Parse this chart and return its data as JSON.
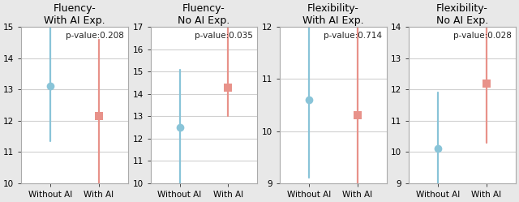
{
  "panels": [
    {
      "title": "Fluency-\nWith AI Exp.",
      "pvalue": "p-value:0.208",
      "ylim": [
        10,
        15
      ],
      "yticks": [
        10,
        11,
        12,
        13,
        14,
        15
      ],
      "without_ai": {
        "mean": 13.1,
        "ci_low": 11.35,
        "ci_high": 15.0
      },
      "with_ai": {
        "mean": 12.15,
        "ci_low": 9.85,
        "ci_high": 14.6
      }
    },
    {
      "title": "Fluency-\nNo AI Exp.",
      "pvalue": "p-value:0.035",
      "ylim": [
        10,
        17
      ],
      "yticks": [
        10,
        11,
        12,
        13,
        14,
        15,
        16,
        17
      ],
      "without_ai": {
        "mean": 12.5,
        "ci_low": 9.9,
        "ci_high": 15.1
      },
      "with_ai": {
        "mean": 14.3,
        "ci_low": 13.0,
        "ci_high": 17.0
      }
    },
    {
      "title": "Flexibility-\nWith AI Exp.",
      "pvalue": "p-value:0.714",
      "ylim": [
        9,
        12
      ],
      "yticks": [
        9,
        10,
        11,
        12
      ],
      "without_ai": {
        "mean": 10.6,
        "ci_low": 9.1,
        "ci_high": 12.3
      },
      "with_ai": {
        "mean": 10.3,
        "ci_low": 8.5,
        "ci_high": 12.3
      }
    },
    {
      "title": "Flexibility-\nNo AI Exp.",
      "pvalue": "p-value:0.028",
      "ylim": [
        9,
        14
      ],
      "yticks": [
        9,
        10,
        11,
        12,
        13,
        14
      ],
      "without_ai": {
        "mean": 10.1,
        "ci_low": 8.7,
        "ci_high": 11.9
      },
      "with_ai": {
        "mean": 12.2,
        "ci_low": 10.3,
        "ci_high": 14.3
      }
    }
  ],
  "blue_color": "#89C4D8",
  "red_color": "#E8928A",
  "blue_marker": "o",
  "red_marker": "s",
  "marker_size": 7,
  "lw": 1.6,
  "x_labels": [
    "Without AI",
    "With AI"
  ],
  "x_positions": [
    0,
    1
  ],
  "xlim": [
    -0.6,
    1.6
  ],
  "figure_bg": "#e8e8e8",
  "axes_bg": "#ffffff",
  "grid_color": "#d0d0d0",
  "spine_color": "#aaaaaa",
  "title_fontsize": 9,
  "pvalue_fontsize": 7.5,
  "tick_fontsize": 7.5
}
